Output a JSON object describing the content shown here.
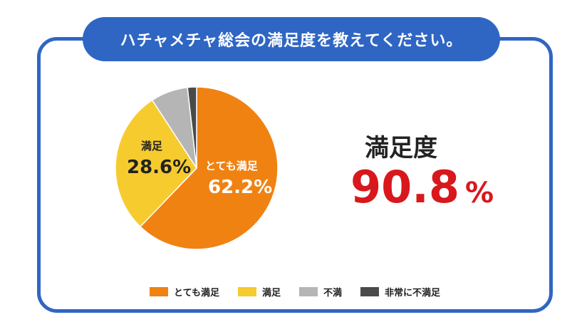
{
  "title": "ハチャメチャ総会の満足度を教えてください。",
  "chart_data": {
    "type": "pie",
    "categories": [
      "とても満足",
      "満足",
      "不満",
      "非常に不満足"
    ],
    "values": [
      62.2,
      28.6,
      7.4,
      1.8
    ],
    "colors": [
      "#f08212",
      "#f6cb2e",
      "#b5b5b5",
      "#4a4a4a"
    ],
    "data_labels": [
      {
        "category": "とても満足",
        "name": "とても満足",
        "value": "62.2%"
      },
      {
        "category": "満足",
        "name": "満足",
        "value": "28.6%"
      }
    ],
    "legend_position": "bottom",
    "legend": [
      "とても満足",
      "満足",
      "不満",
      "非常に不満足"
    ]
  },
  "summary": {
    "label": "満足度",
    "value": "90.8",
    "unit": "%"
  }
}
